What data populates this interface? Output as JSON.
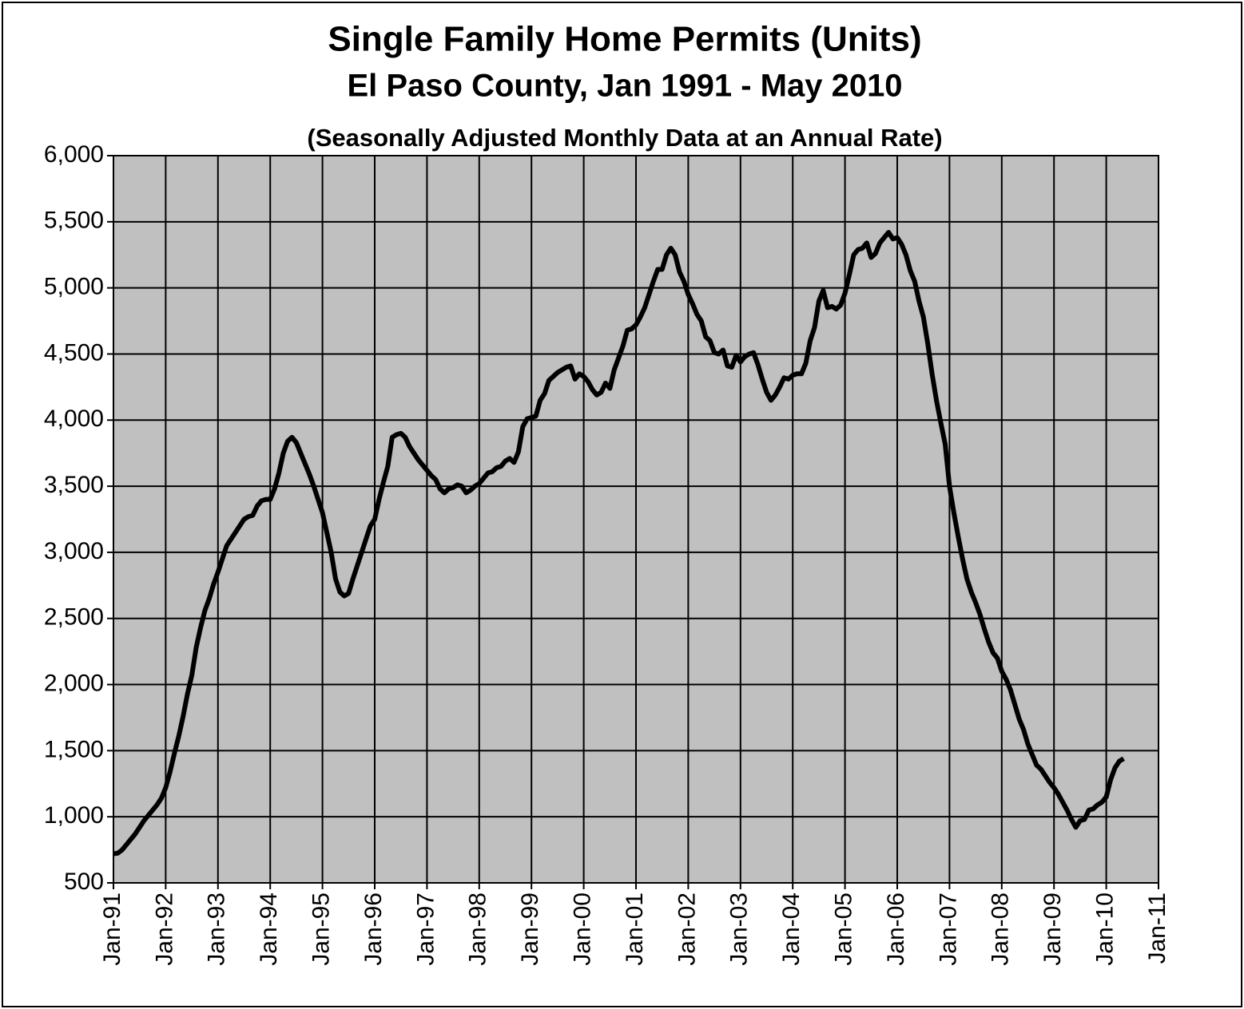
{
  "chart_data": {
    "type": "line",
    "title": "Single Family Home Permits (Units)",
    "subtitle": "El Paso County, Jan 1991 - May 2010",
    "note": "(Seasonally Adjusted Monthly Data at an Annual Rate)",
    "grid": true,
    "background": "#c0c0c0",
    "xlim": [
      "1991-01",
      "2011-01"
    ],
    "xticks": [
      {
        "value": "1991-01",
        "label": "Jan-91"
      },
      {
        "value": "1992-01",
        "label": "Jan-92"
      },
      {
        "value": "1993-01",
        "label": "Jan-93"
      },
      {
        "value": "1994-01",
        "label": "Jan-94"
      },
      {
        "value": "1995-01",
        "label": "Jan-95"
      },
      {
        "value": "1996-01",
        "label": "Jan-96"
      },
      {
        "value": "1997-01",
        "label": "Jan-97"
      },
      {
        "value": "1998-01",
        "label": "Jan-98"
      },
      {
        "value": "1999-01",
        "label": "Jan-99"
      },
      {
        "value": "2000-01",
        "label": "Jan-00"
      },
      {
        "value": "2001-01",
        "label": "Jan-01"
      },
      {
        "value": "2002-01",
        "label": "Jan-02"
      },
      {
        "value": "2003-01",
        "label": "Jan-03"
      },
      {
        "value": "2004-01",
        "label": "Jan-04"
      },
      {
        "value": "2005-01",
        "label": "Jan-05"
      },
      {
        "value": "2006-01",
        "label": "Jan-06"
      },
      {
        "value": "2007-01",
        "label": "Jan-07"
      },
      {
        "value": "2008-01",
        "label": "Jan-08"
      },
      {
        "value": "2009-01",
        "label": "Jan-09"
      },
      {
        "value": "2010-01",
        "label": "Jan-10"
      },
      {
        "value": "2011-01",
        "label": "Jan-11"
      }
    ],
    "ylim": [
      500,
      6000
    ],
    "yticks": [
      500,
      {
        "value": 1000,
        "label": "1,000"
      },
      {
        "value": 1500,
        "label": "1,500"
      },
      {
        "value": 2000,
        "label": "2,000"
      },
      {
        "value": 2500,
        "label": "2,500"
      },
      {
        "value": 3000,
        "label": "3,000"
      },
      {
        "value": 3500,
        "label": "3,500"
      },
      {
        "value": 4000,
        "label": "4,000"
      },
      {
        "value": 4500,
        "label": "4,500"
      },
      {
        "value": 5000,
        "label": "5,000"
      },
      {
        "value": 5500,
        "label": "5,500"
      },
      {
        "value": 6000,
        "label": "6,000"
      }
    ],
    "x": [
      "1991-01",
      "1991-02",
      "1991-03",
      "1991-04",
      "1991-05",
      "1991-06",
      "1991-07",
      "1991-08",
      "1991-09",
      "1991-10",
      "1991-11",
      "1991-12",
      "1992-01",
      "1992-02",
      "1992-03",
      "1992-04",
      "1992-05",
      "1992-06",
      "1992-07",
      "1992-08",
      "1992-09",
      "1992-10",
      "1992-11",
      "1992-12",
      "1993-01",
      "1993-02",
      "1993-03",
      "1993-04",
      "1993-05",
      "1993-06",
      "1993-07",
      "1993-08",
      "1993-09",
      "1993-10",
      "1993-11",
      "1993-12",
      "1994-01",
      "1994-02",
      "1994-03",
      "1994-04",
      "1994-05",
      "1994-06",
      "1994-07",
      "1994-08",
      "1994-09",
      "1994-10",
      "1994-11",
      "1994-12",
      "1995-01",
      "1995-02",
      "1995-03",
      "1995-04",
      "1995-05",
      "1995-06",
      "1995-07",
      "1995-08",
      "1995-09",
      "1995-10",
      "1995-11",
      "1995-12",
      "1996-01",
      "1996-02",
      "1996-03",
      "1996-04",
      "1996-05",
      "1996-06",
      "1996-07",
      "1996-08",
      "1996-09",
      "1996-10",
      "1996-11",
      "1996-12",
      "1997-01",
      "1997-02",
      "1997-03",
      "1997-04",
      "1997-05",
      "1997-06",
      "1997-07",
      "1997-08",
      "1997-09",
      "1997-10",
      "1997-11",
      "1997-12",
      "1998-01",
      "1998-02",
      "1998-03",
      "1998-04",
      "1998-05",
      "1998-06",
      "1998-07",
      "1998-08",
      "1998-09",
      "1998-10",
      "1998-11",
      "1998-12",
      "1999-01",
      "1999-02",
      "1999-03",
      "1999-04",
      "1999-05",
      "1999-06",
      "1999-07",
      "1999-08",
      "1999-09",
      "1999-10",
      "1999-11",
      "1999-12",
      "2000-01",
      "2000-02",
      "2000-03",
      "2000-04",
      "2000-05",
      "2000-06",
      "2000-07",
      "2000-08",
      "2000-09",
      "2000-10",
      "2000-11",
      "2000-12",
      "2001-01",
      "2001-02",
      "2001-03",
      "2001-04",
      "2001-05",
      "2001-06",
      "2001-07",
      "2001-08",
      "2001-09",
      "2001-10",
      "2001-11",
      "2001-12",
      "2002-01",
      "2002-02",
      "2002-03",
      "2002-04",
      "2002-05",
      "2002-06",
      "2002-07",
      "2002-08",
      "2002-09",
      "2002-10",
      "2002-11",
      "2002-12",
      "2003-01",
      "2003-02",
      "2003-03",
      "2003-04",
      "2003-05",
      "2003-06",
      "2003-07",
      "2003-08",
      "2003-09",
      "2003-10",
      "2003-11",
      "2003-12",
      "2004-01",
      "2004-02",
      "2004-03",
      "2004-04",
      "2004-05",
      "2004-06",
      "2004-07",
      "2004-08",
      "2004-09",
      "2004-10",
      "2004-11",
      "2004-12",
      "2005-01",
      "2005-02",
      "2005-03",
      "2005-04",
      "2005-05",
      "2005-06",
      "2005-07",
      "2005-08",
      "2005-09",
      "2005-10",
      "2005-11",
      "2005-12",
      "2006-01",
      "2006-02",
      "2006-03",
      "2006-04",
      "2006-05",
      "2006-06",
      "2006-07",
      "2006-08",
      "2006-09",
      "2006-10",
      "2006-11",
      "2006-12",
      "2007-01",
      "2007-02",
      "2007-03",
      "2007-04",
      "2007-05",
      "2007-06",
      "2007-07",
      "2007-08",
      "2007-09",
      "2007-10",
      "2007-11",
      "2007-12",
      "2008-01",
      "2008-02",
      "2008-03",
      "2008-04",
      "2008-05",
      "2008-06",
      "2008-07",
      "2008-08",
      "2008-09",
      "2008-10",
      "2008-11",
      "2008-12",
      "2009-01",
      "2009-02",
      "2009-03",
      "2009-04",
      "2009-05",
      "2009-06",
      "2009-07",
      "2009-08",
      "2009-09",
      "2009-10",
      "2009-11",
      "2009-12",
      "2010-01",
      "2010-02",
      "2010-03",
      "2010-04",
      "2010-05"
    ],
    "series": [
      {
        "color": "#000000",
        "values": [
          720,
          725,
          750,
          790,
          830,
          870,
          920,
          970,
          1010,
          1050,
          1090,
          1140,
          1220,
          1340,
          1480,
          1610,
          1760,
          1930,
          2070,
          2280,
          2430,
          2560,
          2650,
          2760,
          2850,
          2950,
          3050,
          3100,
          3150,
          3200,
          3250,
          3270,
          3280,
          3350,
          3390,
          3400,
          3400,
          3480,
          3600,
          3750,
          3840,
          3870,
          3830,
          3750,
          3670,
          3590,
          3500,
          3400,
          3300,
          3150,
          3000,
          2800,
          2700,
          2670,
          2690,
          2800,
          2900,
          3000,
          3100,
          3200,
          3250,
          3400,
          3530,
          3650,
          3870,
          3890,
          3900,
          3870,
          3800,
          3750,
          3700,
          3660,
          3620,
          3580,
          3550,
          3480,
          3450,
          3480,
          3490,
          3510,
          3500,
          3450,
          3470,
          3500,
          3520,
          3560,
          3600,
          3610,
          3640,
          3650,
          3690,
          3710,
          3680,
          3760,
          3950,
          4010,
          4020,
          4030,
          4150,
          4200,
          4300,
          4330,
          4360,
          4380,
          4400,
          4410,
          4310,
          4350,
          4330,
          4290,
          4230,
          4190,
          4210,
          4280,
          4240,
          4380,
          4470,
          4560,
          4680,
          4690,
          4720,
          4780,
          4850,
          4950,
          5050,
          5140,
          5140,
          5250,
          5300,
          5250,
          5120,
          5050,
          4950,
          4880,
          4800,
          4750,
          4630,
          4600,
          4510,
          4500,
          4530,
          4410,
          4400,
          4490,
          4440,
          4480,
          4500,
          4510,
          4420,
          4310,
          4210,
          4150,
          4190,
          4250,
          4320,
          4310,
          4340,
          4350,
          4350,
          4430,
          4600,
          4700,
          4900,
          4980,
          4850,
          4860,
          4840,
          4870,
          4960,
          5100,
          5250,
          5290,
          5300,
          5340,
          5230,
          5260,
          5340,
          5380,
          5420,
          5370,
          5380,
          5330,
          5250,
          5130,
          5050,
          4900,
          4780,
          4580,
          4350,
          4150,
          3980,
          3820,
          3500,
          3300,
          3120,
          2950,
          2800,
          2700,
          2620,
          2530,
          2420,
          2320,
          2240,
          2200,
          2100,
          2040,
          1960,
          1850,
          1740,
          1660,
          1550,
          1470,
          1390,
          1360,
          1310,
          1260,
          1220,
          1170,
          1110,
          1050,
          980,
          920,
          970,
          980,
          1050,
          1060,
          1090,
          1110,
          1150,
          1280,
          1370,
          1420,
          1440
        ]
      }
    ]
  }
}
